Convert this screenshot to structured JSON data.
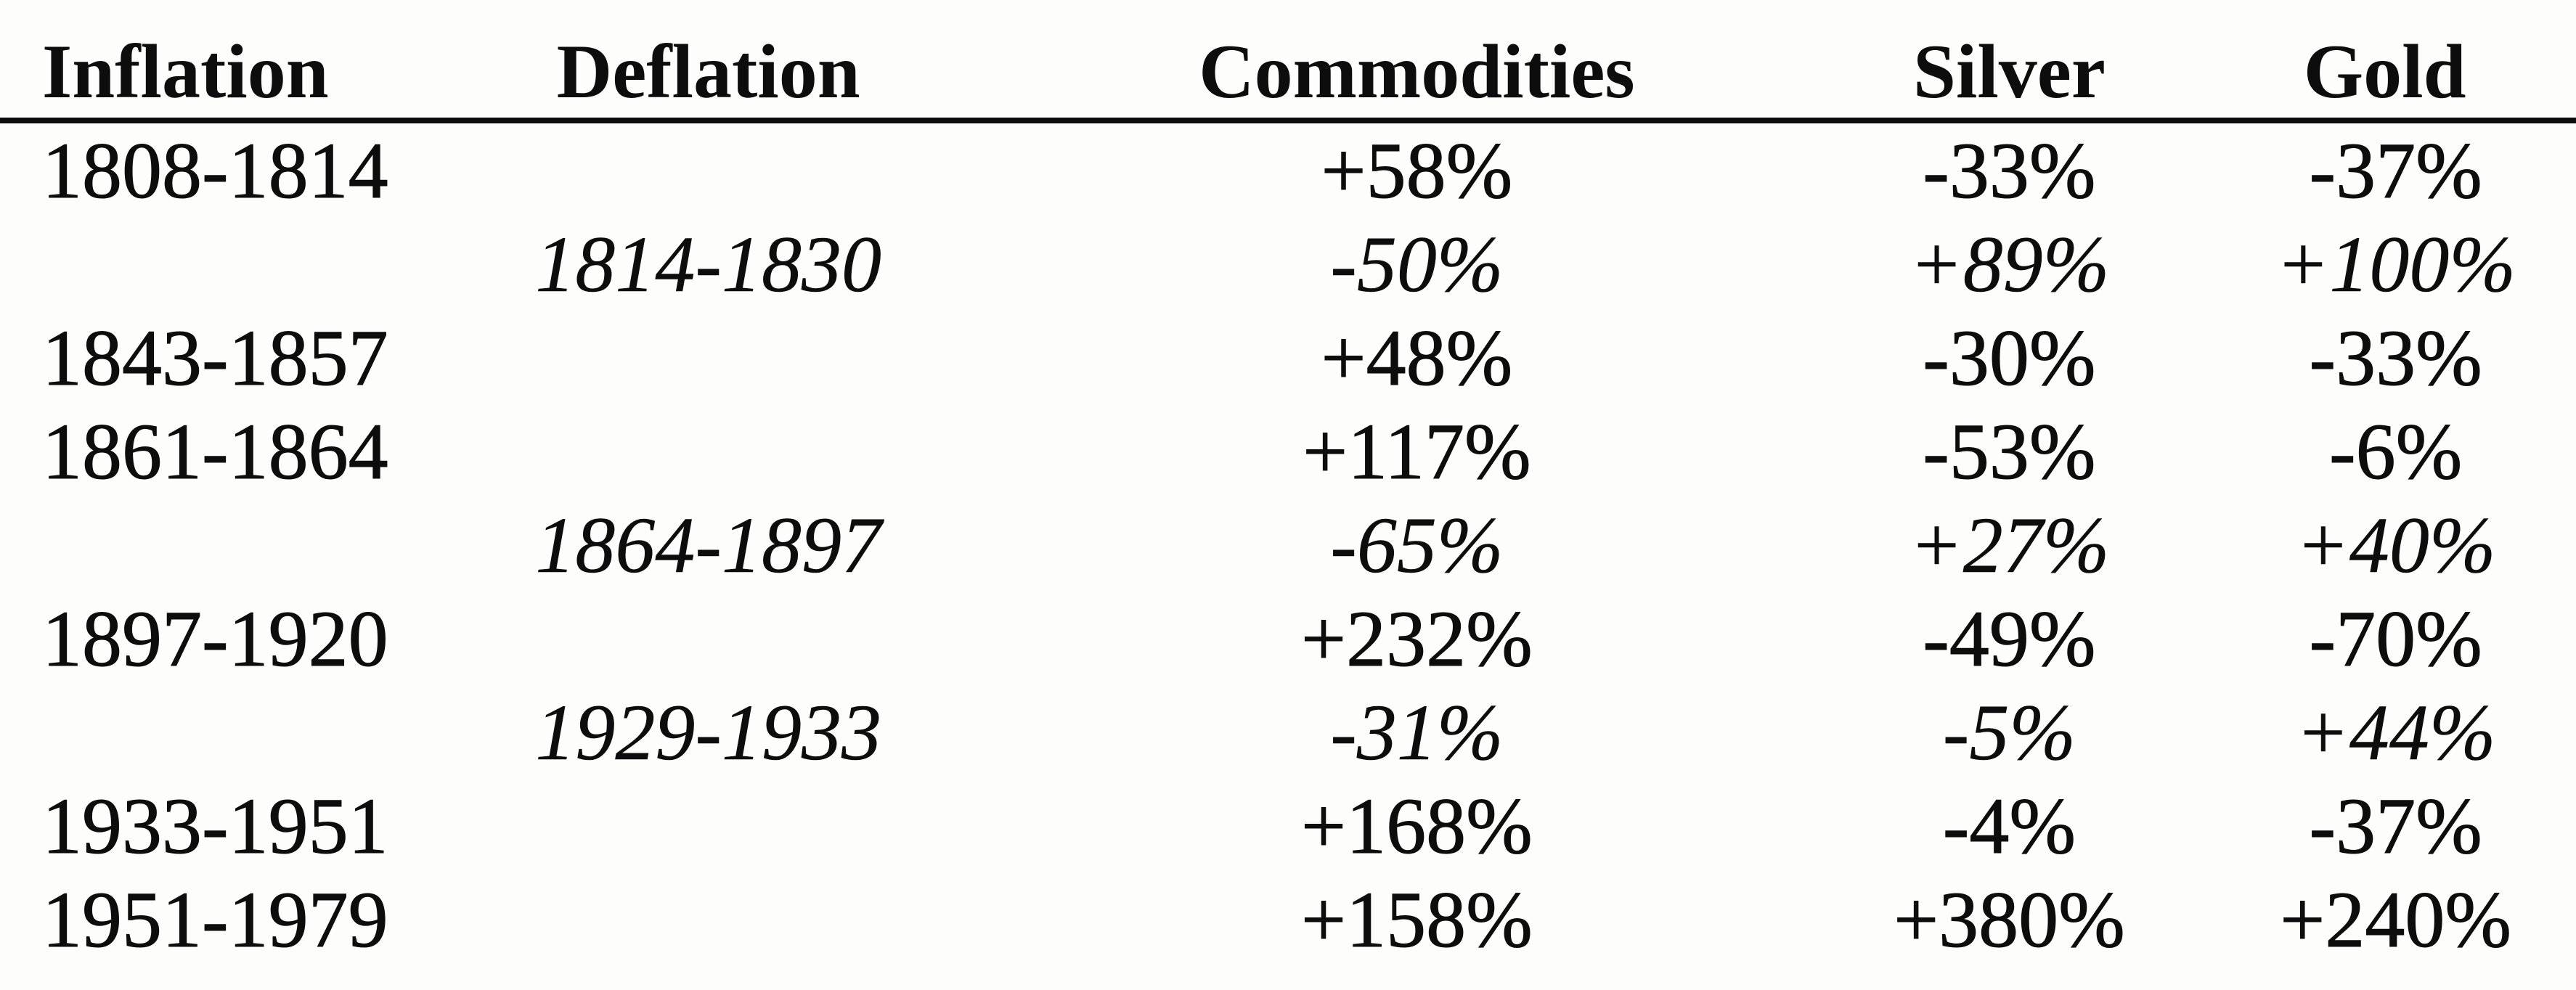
{
  "document": {
    "kind": "scanned printed table",
    "subject": "Performance of commodities, silver and gold during inflation and deflation periods"
  },
  "colors": {
    "ink": "#0d0d0d",
    "paper": "#fdfdfb"
  },
  "table": {
    "headers": [
      "Inflation",
      "Deflation",
      "Commodities",
      "Silver",
      "Gold"
    ],
    "rows": [
      {
        "period_type": "inflation",
        "cells": [
          "1808-1814",
          "",
          "+58%",
          "-33%",
          "-37%"
        ]
      },
      {
        "period_type": "deflation",
        "cells": [
          "",
          "1814-1830",
          "-50%",
          "+89%",
          "+100%"
        ]
      },
      {
        "period_type": "inflation",
        "cells": [
          "1843-1857",
          "",
          "+48%",
          "-30%",
          "-33%"
        ]
      },
      {
        "period_type": "inflation",
        "cells": [
          "1861-1864",
          "",
          "+117%",
          "-53%",
          "-6%"
        ]
      },
      {
        "period_type": "deflation",
        "cells": [
          "",
          "1864-1897",
          "-65%",
          "+27%",
          "+40%"
        ]
      },
      {
        "period_type": "inflation",
        "cells": [
          "1897-1920",
          "",
          "+232%",
          "-49%",
          "-70%"
        ]
      },
      {
        "period_type": "deflation",
        "cells": [
          "",
          "1929-1933",
          "-31%",
          "-5%",
          "+44%"
        ]
      },
      {
        "period_type": "inflation",
        "cells": [
          "1933-1951",
          "",
          "+168%",
          "-4%",
          "-37%"
        ]
      },
      {
        "period_type": "inflation",
        "cells": [
          "1951-1979",
          "",
          "+158%",
          "+380%",
          "+240%"
        ]
      }
    ]
  }
}
